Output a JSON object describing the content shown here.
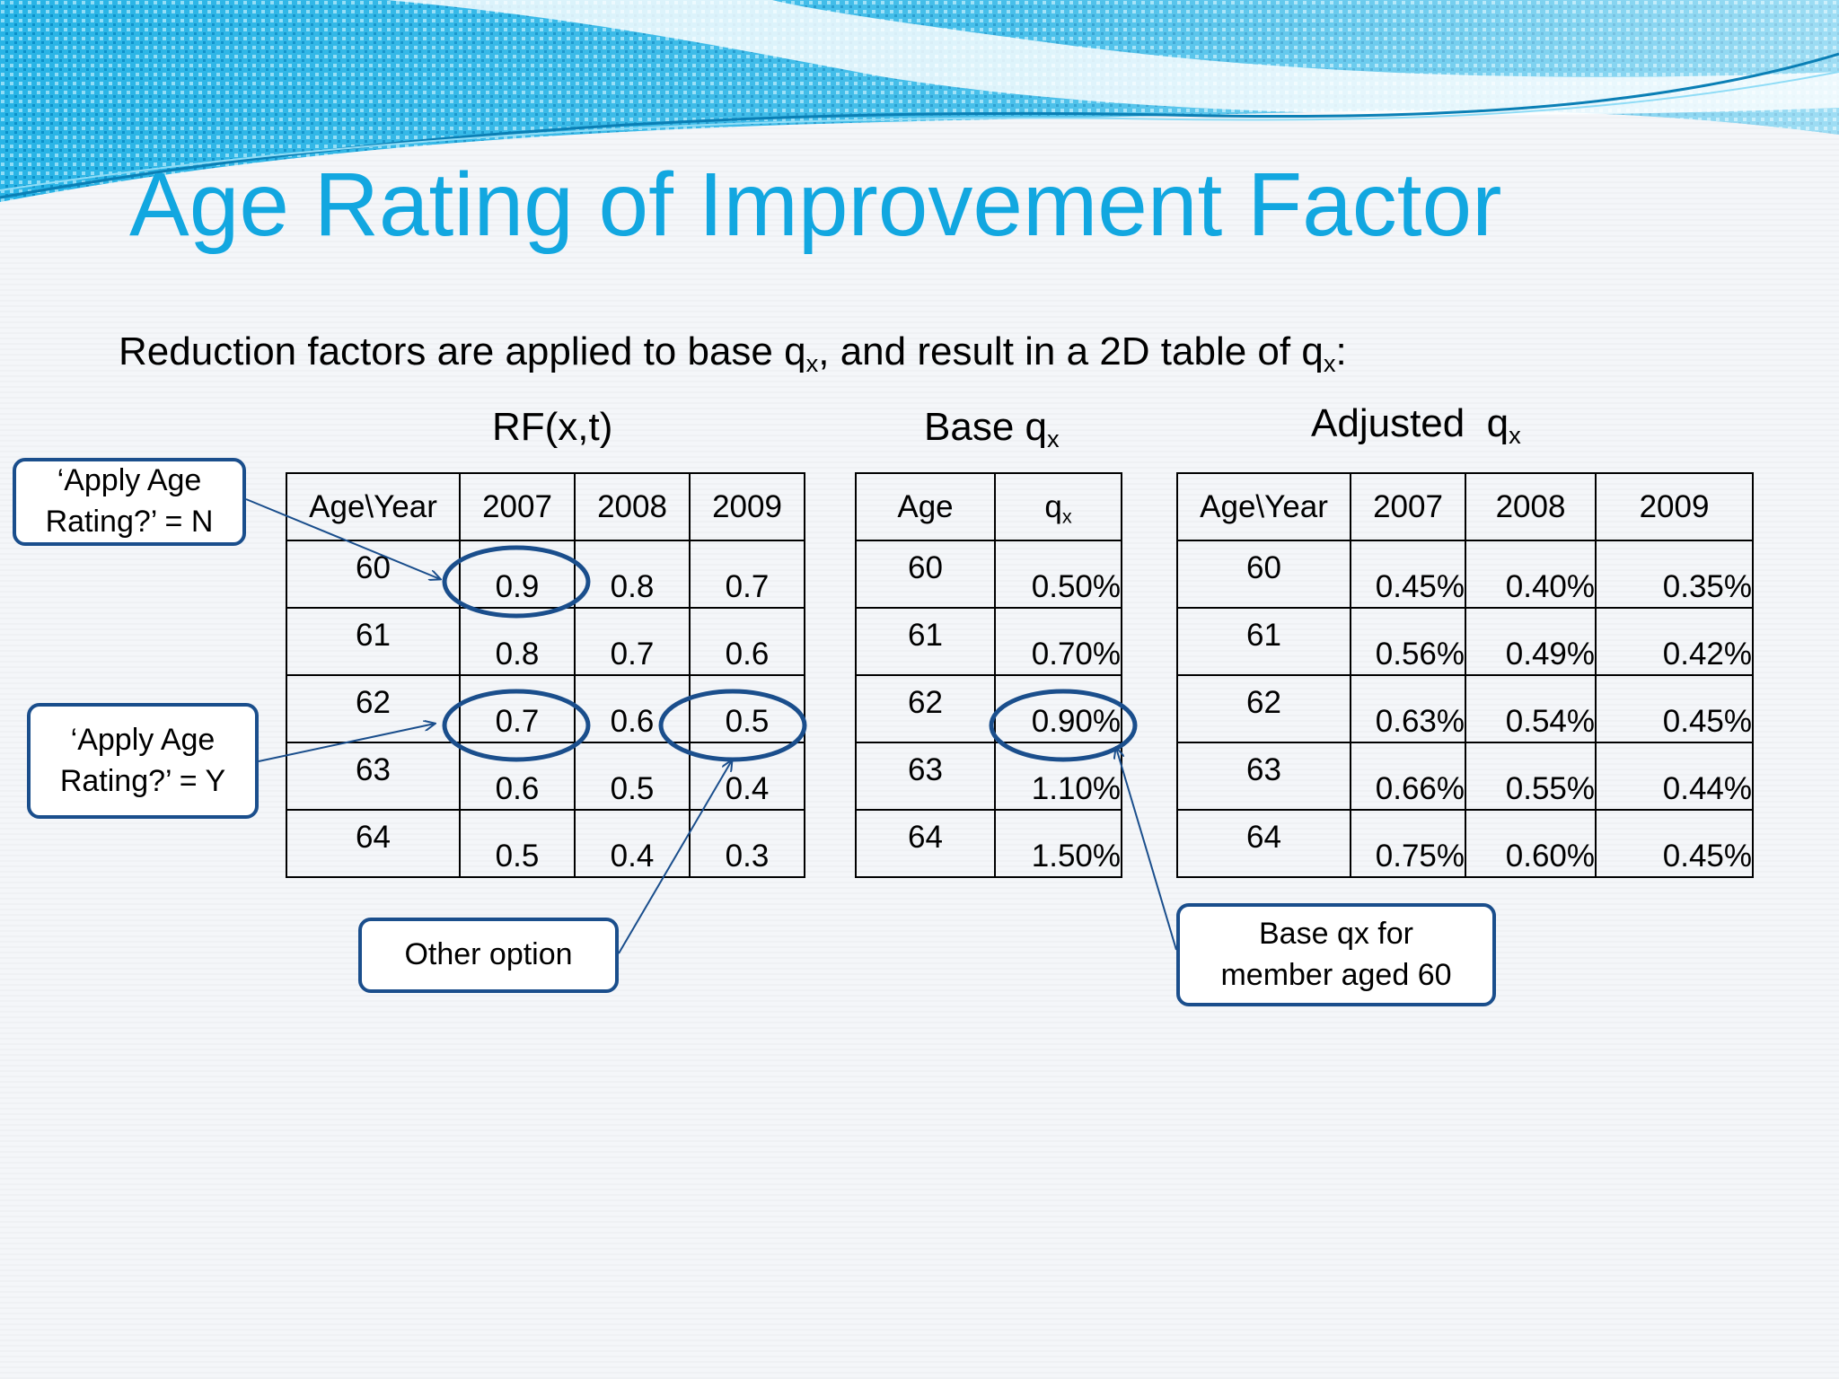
{
  "title": "Age Rating of Improvement Factor",
  "subtitle": {
    "text_a": "Reduction factors are applied to base q",
    "sub_a": "x",
    "text_b": ", and result in a 2D table of q",
    "sub_b": "x",
    "text_c": ":"
  },
  "rf_table": {
    "caption": "RF(x,t)",
    "headers": [
      "Age\\Year",
      "2007",
      "2008",
      "2009"
    ],
    "rows": [
      [
        "60",
        "0.9",
        "0.8",
        "0.7"
      ],
      [
        "61",
        "0.8",
        "0.7",
        "0.6"
      ],
      [
        "62",
        "0.7",
        "0.6",
        "0.5"
      ],
      [
        "63",
        "0.6",
        "0.5",
        "0.4"
      ],
      [
        "64",
        "0.5",
        "0.4",
        "0.3"
      ]
    ]
  },
  "base_table": {
    "caption_text": "Base q",
    "caption_sub": "x",
    "header_age": "Age",
    "header_q": "q",
    "header_q_sub": "x",
    "rows": [
      [
        "60",
        "0.50%"
      ],
      [
        "61",
        "0.70%"
      ],
      [
        "62",
        "0.90%"
      ],
      [
        "63",
        "1.10%"
      ],
      [
        "64",
        "1.50%"
      ]
    ]
  },
  "adj_table": {
    "caption_text": "Adjusted  q",
    "caption_sub": "x",
    "headers": [
      "Age\\Year",
      "2007",
      "2008",
      "2009"
    ],
    "rows": [
      [
        "60",
        "0.45%",
        "0.40%",
        "0.35%"
      ],
      [
        "61",
        "0.56%",
        "0.49%",
        "0.42%"
      ],
      [
        "62",
        "0.63%",
        "0.54%",
        "0.45%"
      ],
      [
        "63",
        "0.66%",
        "0.55%",
        "0.44%"
      ],
      [
        "64",
        "0.75%",
        "0.60%",
        "0.45%"
      ]
    ]
  },
  "callouts": {
    "apply_n": {
      "line1": "‘Apply Age",
      "line2": "Rating?’ = N"
    },
    "apply_y": {
      "line1": "‘Apply Age",
      "line2": "Rating?’ = Y"
    },
    "other": {
      "line1": "Other option"
    },
    "base": {
      "line1": "Base qx for",
      "line2": "member aged 60"
    }
  },
  "colors": {
    "title": "#12a7e0",
    "annotation": "#1a4e8c",
    "header_band": "#1ab3e6"
  }
}
